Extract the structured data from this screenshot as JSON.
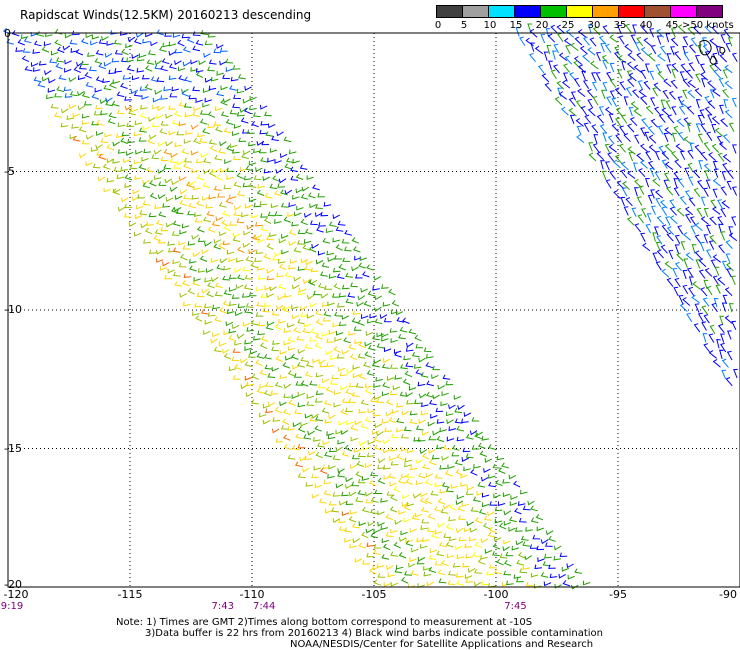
{
  "title": "Rapidscat Winds(12.5KM) 20160213 descending",
  "colorbar": {
    "labels": [
      "0",
      "5",
      "10",
      "15",
      "20",
      "25",
      "30",
      "35",
      "40",
      "45",
      ">50 knots"
    ],
    "colors": [
      "#404040",
      "#a0a0a0",
      "#00e0ff",
      "#0000ff",
      "#00c000",
      "#ffff00",
      "#ffa000",
      "#ff0000",
      "#a05030",
      "#ff00ff",
      "#800080"
    ]
  },
  "map": {
    "x_ticks": [
      "-120",
      "-115",
      "-110",
      "-105",
      "-100",
      "-95",
      "-90"
    ],
    "y_ticks": [
      "0",
      "-5",
      "-10",
      "-15",
      "-20"
    ],
    "lon_range": [
      -120,
      -90
    ],
    "lat_range": [
      0,
      -20
    ],
    "grid": true,
    "times": [
      {
        "label": "9:19",
        "lon": -120
      },
      {
        "label": "7:43",
        "lon": -111.2
      },
      {
        "label": "7:44",
        "lon": -109.5
      },
      {
        "label": "7:45",
        "lon": -99.2
      }
    ]
  },
  "notes": {
    "line1": "Note: 1) Times are GMT 2)Times along bottom correspond to measurement at -10S",
    "line2": "3)Data buffer is 22 hrs from 20160213 4) Black wind barbs indicate possible contamination",
    "line3": "NOAA/NESDIS/Center for Satellite Applications and Research"
  }
}
